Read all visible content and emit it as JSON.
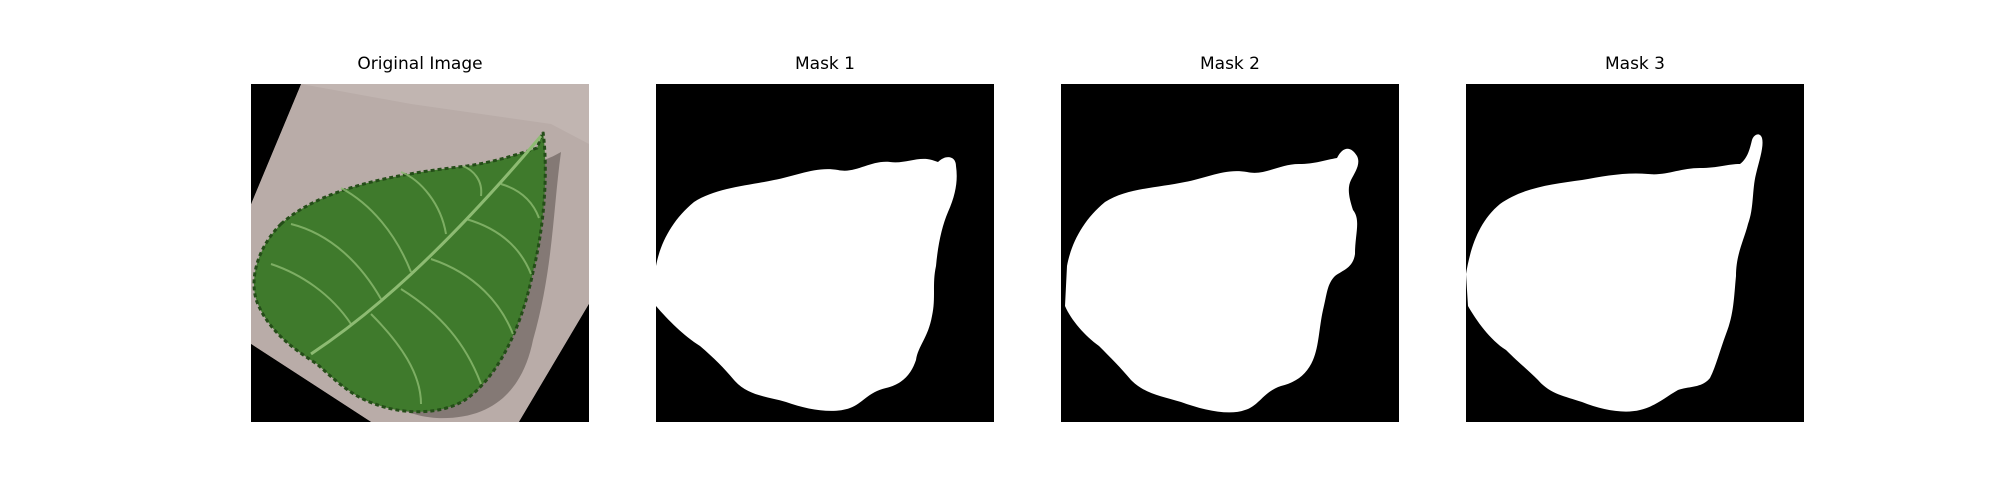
{
  "figure": {
    "panels": [
      {
        "title": "Original Image",
        "content": "photo of a green serrated leaf on a beige surface, rotated on a black background"
      },
      {
        "title": "Mask 1",
        "content": "white binary leaf mask on black"
      },
      {
        "title": "Mask 2",
        "content": "white binary leaf mask on black"
      },
      {
        "title": "Mask 3",
        "content": "white binary leaf mask on black"
      }
    ]
  },
  "colors": {
    "background": "#000000",
    "mask": "#ffffff",
    "surface": "#b9aca8",
    "leaf": "#3f7a2c",
    "leaf_dark": "#244d18",
    "leaf_vein": "#8dbb72"
  }
}
